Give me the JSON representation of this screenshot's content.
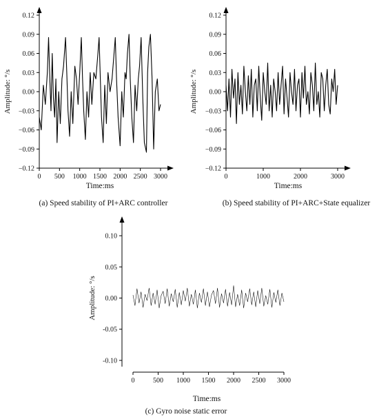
{
  "chart_data": [
    {
      "id": "a",
      "type": "line",
      "caption": "(a) Speed stability of PI+ARC controller",
      "xlabel": "Time:ms",
      "ylabel": "Amplitude: °/s",
      "xlim": [
        0,
        3000
      ],
      "ylim": [
        -0.12,
        0.12
      ],
      "xticks": [
        0,
        500,
        1000,
        1500,
        2000,
        2500,
        3000
      ],
      "yticks": [
        -0.12,
        -0.09,
        -0.06,
        -0.03,
        0.0,
        0.03,
        0.06,
        0.09,
        0.12
      ],
      "ytick_labels": [
        "−0.12",
        "−0.09",
        "−0.06",
        "−0.03",
        "0.00",
        "0.03",
        "0.06",
        "0.09",
        "0.12"
      ],
      "series": [
        {
          "x": [
            0,
            50,
            100,
            150,
            200,
            230,
            260,
            290,
            320,
            350,
            380,
            410,
            440,
            480,
            520,
            560,
            600,
            650,
            680,
            710,
            750,
            790,
            830,
            880,
            920,
            960,
            1000,
            1040,
            1070,
            1100,
            1140,
            1180,
            1220,
            1260,
            1300,
            1350,
            1400,
            1450,
            1480,
            1510,
            1540,
            1580,
            1620,
            1660,
            1700,
            1750,
            1800,
            1850,
            1880,
            1910,
            1950,
            2000,
            2040,
            2080,
            2120,
            2150,
            2180,
            2220,
            2250,
            2290,
            2330,
            2370,
            2410,
            2450,
            2480,
            2520,
            2560,
            2600,
            2650,
            2680,
            2710,
            2750,
            2790,
            2830,
            2870,
            2920,
            2960,
            3000
          ],
          "y": [
            -0.04,
            -0.06,
            0.01,
            -0.02,
            0.03,
            0.085,
            0.02,
            -0.03,
            0.06,
            -0.01,
            -0.04,
            0.02,
            -0.08,
            0.0,
            -0.05,
            0.02,
            0.04,
            0.085,
            0.03,
            -0.03,
            -0.07,
            0.0,
            -0.05,
            0.04,
            0.02,
            -0.02,
            0.03,
            0.085,
            0.02,
            -0.03,
            -0.075,
            0.0,
            -0.04,
            0.03,
            -0.02,
            0.03,
            0.02,
            0.06,
            0.085,
            0.02,
            -0.04,
            -0.08,
            0.01,
            -0.05,
            0.03,
            0.0,
            0.02,
            0.06,
            0.085,
            0.02,
            -0.04,
            -0.085,
            0.0,
            -0.04,
            0.03,
            0.02,
            0.06,
            0.09,
            0.02,
            -0.04,
            -0.08,
            0.01,
            -0.03,
            0.02,
            0.04,
            0.085,
            -0.01,
            -0.08,
            -0.095,
            0.03,
            0.07,
            0.09,
            0.02,
            -0.09,
            0.0,
            0.02,
            -0.03,
            -0.02
          ]
        }
      ]
    },
    {
      "id": "b",
      "type": "line",
      "caption": "(b) Speed stability of PI+ARC+State equalizer",
      "xlabel": "Time:ms",
      "ylabel": "Amplitude: °/s",
      "xlim": [
        0,
        3000
      ],
      "ylim": [
        -0.12,
        0.12
      ],
      "xticks": [
        0,
        1000,
        2000,
        3000
      ],
      "yticks": [
        -0.12,
        -0.09,
        -0.06,
        -0.03,
        0.0,
        0.03,
        0.06,
        0.09,
        0.12
      ],
      "ytick_labels": [
        "−0.12",
        "−0.09",
        "−0.06",
        "−0.03",
        "0.00",
        "0.03",
        "0.06",
        "0.09",
        "0.12"
      ],
      "series": [
        {
          "x": [
            0,
            40,
            80,
            120,
            160,
            200,
            240,
            280,
            320,
            360,
            400,
            440,
            480,
            520,
            560,
            600,
            640,
            680,
            720,
            760,
            800,
            840,
            880,
            920,
            960,
            1000,
            1040,
            1080,
            1120,
            1160,
            1200,
            1240,
            1280,
            1320,
            1360,
            1400,
            1440,
            1480,
            1520,
            1560,
            1600,
            1640,
            1680,
            1720,
            1760,
            1800,
            1840,
            1880,
            1920,
            1960,
            2000,
            2040,
            2080,
            2120,
            2160,
            2200,
            2240,
            2280,
            2320,
            2360,
            2400,
            2440,
            2480,
            2520,
            2560,
            2600,
            2640,
            2680,
            2720,
            2760,
            2800,
            2840,
            2880,
            2920,
            2960,
            3000
          ],
          "y": [
            0.01,
            -0.03,
            0.02,
            -0.04,
            0.035,
            -0.01,
            0.02,
            -0.05,
            0.03,
            -0.02,
            0.01,
            -0.035,
            0.04,
            0.0,
            -0.03,
            0.025,
            -0.02,
            0.035,
            -0.04,
            0.01,
            0.02,
            -0.03,
            0.04,
            -0.01,
            -0.045,
            0.03,
            0.0,
            -0.02,
            0.045,
            -0.03,
            0.01,
            -0.04,
            0.02,
            0.0,
            -0.03,
            0.03,
            -0.02,
            0.01,
            0.04,
            -0.035,
            0.02,
            -0.01,
            -0.04,
            0.03,
            0.0,
            -0.02,
            0.035,
            -0.03,
            0.01,
            0.02,
            -0.04,
            0.03,
            -0.01,
            0.04,
            -0.02,
            0.0,
            -0.035,
            0.03,
            0.01,
            -0.03,
            0.045,
            -0.02,
            0.0,
            -0.04,
            0.03,
            0.02,
            -0.03,
            0.01,
            0.035,
            -0.02,
            -0.035,
            0.02,
            0.0,
            0.035,
            -0.02,
            0.01
          ]
        }
      ]
    },
    {
      "id": "c",
      "type": "line",
      "caption": "(c) Gyro noise static error",
      "xlabel": "Time:ms",
      "ylabel": "Amplitude: °/s",
      "xlim": [
        0,
        3000
      ],
      "ylim": [
        -0.11,
        0.11
      ],
      "xticks": [
        0,
        500,
        1000,
        1500,
        2000,
        2500,
        3000
      ],
      "yticks": [
        -0.1,
        -0.05,
        0.0,
        0.05,
        0.1
      ],
      "ytick_labels": [
        "-0.10",
        "-0.05",
        "0.00",
        "0.05",
        "0.10"
      ],
      "series": [
        {
          "x": [
            0,
            40,
            80,
            120,
            160,
            200,
            240,
            280,
            320,
            360,
            400,
            440,
            480,
            520,
            560,
            600,
            640,
            680,
            720,
            760,
            800,
            840,
            880,
            920,
            960,
            1000,
            1040,
            1080,
            1120,
            1160,
            1200,
            1240,
            1280,
            1320,
            1360,
            1400,
            1440,
            1480,
            1520,
            1560,
            1600,
            1640,
            1680,
            1720,
            1760,
            1800,
            1840,
            1880,
            1920,
            1960,
            2000,
            2040,
            2080,
            2120,
            2160,
            2200,
            2240,
            2280,
            2320,
            2360,
            2400,
            2440,
            2480,
            2520,
            2560,
            2600,
            2640,
            2680,
            2720,
            2760,
            2800,
            2840,
            2880,
            2920,
            2960,
            3000
          ],
          "y": [
            0.005,
            -0.012,
            0.015,
            -0.008,
            0.01,
            -0.015,
            0.006,
            -0.004,
            0.016,
            -0.012,
            0.008,
            -0.01,
            0.013,
            -0.016,
            0.004,
            0.011,
            -0.009,
            0.015,
            -0.013,
            0.007,
            -0.006,
            0.014,
            -0.015,
            0.009,
            -0.011,
            0.012,
            -0.005,
            0.016,
            -0.013,
            0.006,
            -0.01,
            0.013,
            -0.016,
            0.008,
            -0.007,
            0.015,
            -0.012,
            0.01,
            -0.014,
            0.005,
            0.012,
            -0.009,
            0.016,
            -0.015,
            0.007,
            -0.008,
            0.014,
            -0.013,
            0.009,
            -0.011,
            0.02,
            -0.014,
            0.006,
            -0.012,
            0.013,
            -0.016,
            0.008,
            -0.006,
            0.015,
            -0.011,
            0.01,
            -0.014,
            0.012,
            -0.009,
            0.016,
            -0.013,
            0.004,
            -0.01,
            0.014,
            -0.015,
            0.009,
            -0.007,
            0.013,
            -0.012,
            0.008,
            -0.006
          ]
        }
      ]
    }
  ]
}
